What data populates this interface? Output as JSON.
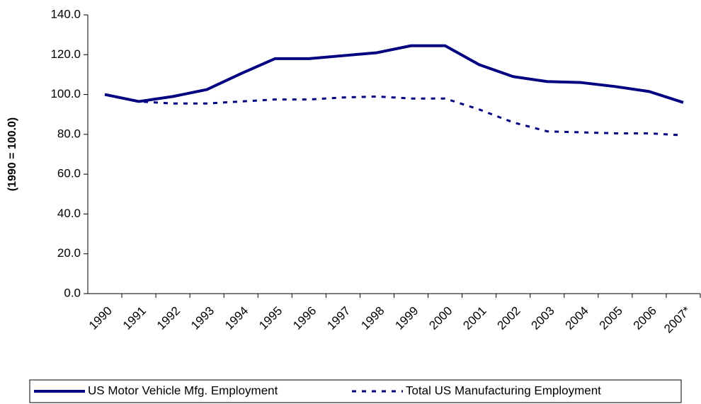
{
  "chart_data": {
    "type": "line",
    "y_axis_label": "(1990 = 100.0)",
    "categories": [
      "1990",
      "1991",
      "1992",
      "1993",
      "1994",
      "1995",
      "1996",
      "1997",
      "1998",
      "1999",
      "2000",
      "2001",
      "2002",
      "2003",
      "2004",
      "2005",
      "2006",
      "2007*"
    ],
    "series": [
      {
        "name": "US Motor Vehicle Mfg. Employment",
        "color": "#000080",
        "style": "solid",
        "values": [
          100,
          96.5,
          99,
          102.5,
          110.5,
          118,
          118,
          119.5,
          121,
          124.5,
          124.5,
          115,
          109,
          106.5,
          106,
          104,
          101.5,
          96
        ]
      },
      {
        "name": "Total US Manufacturing Employment",
        "color": "#000080",
        "style": "dashed",
        "values": [
          100,
          96.5,
          95.5,
          95.5,
          96.5,
          97.5,
          97.5,
          98.5,
          99,
          98,
          98,
          92.5,
          86,
          81.5,
          81,
          80.5,
          80.5,
          79.5
        ]
      }
    ],
    "ylim": [
      0,
      140
    ],
    "yticks": [
      {
        "value": 0,
        "label": "0.0"
      },
      {
        "value": 20,
        "label": "20.0"
      },
      {
        "value": 40,
        "label": "40.0"
      },
      {
        "value": 60,
        "label": "60.0"
      },
      {
        "value": 80,
        "label": "80.0"
      },
      {
        "value": 100,
        "label": "100.0"
      },
      {
        "value": 120,
        "label": "120.0"
      },
      {
        "value": 140,
        "label": "140.0"
      }
    ],
    "grid": false,
    "legend": "bottom"
  }
}
